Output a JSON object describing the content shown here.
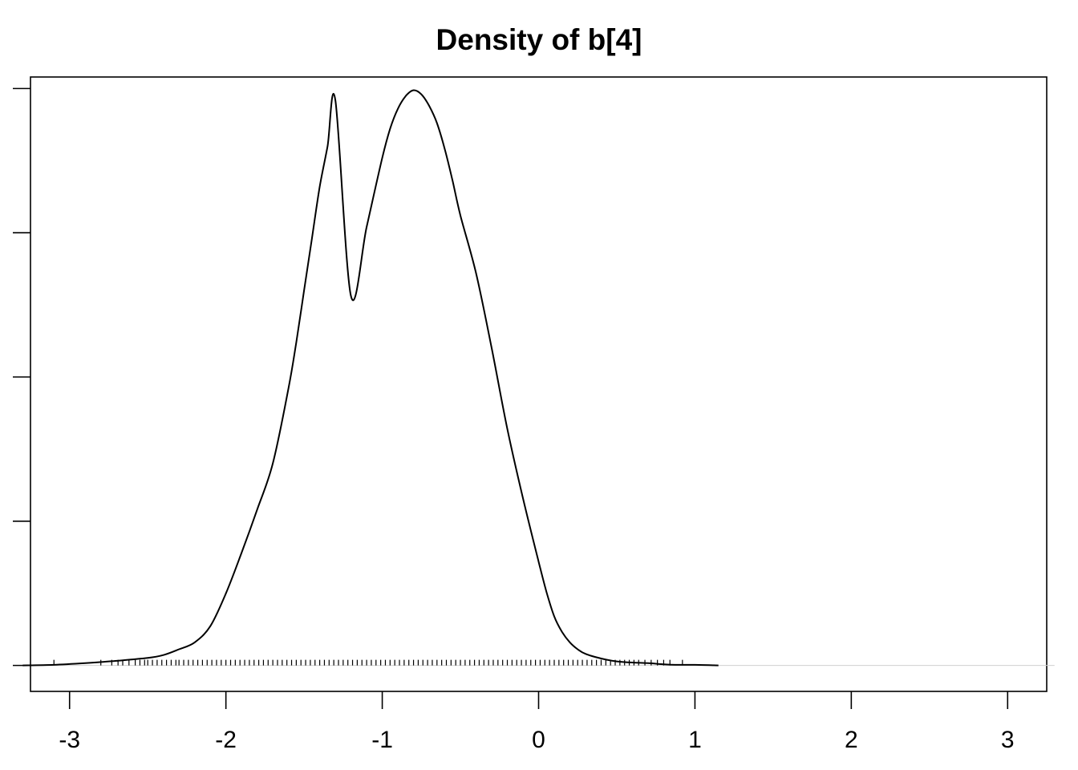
{
  "chart_data": {
    "type": "line",
    "title": "Density of b[4]",
    "xlabel": "",
    "ylabel": "",
    "xlim": [
      -3.25,
      3.25
    ],
    "ylim": [
      -0.045,
      1.02
    ],
    "x_ticks": [
      -3,
      -2,
      -1,
      0,
      1,
      2,
      3
    ],
    "x_tick_labels": [
      "-3",
      "-2",
      "-1",
      "0",
      "1",
      "2",
      "3"
    ],
    "y_ticks": [
      0,
      0.25,
      0.5,
      0.75,
      1.0
    ],
    "y_tick_labels_shown": false,
    "grid": false,
    "legend": "none",
    "series": [
      {
        "x": [
          -3.3,
          -3.1,
          -2.9,
          -2.7,
          -2.5,
          -2.4,
          -2.3,
          -2.2,
          -2.1,
          -2.0,
          -1.9,
          -1.8,
          -1.7,
          -1.6,
          -1.55,
          -1.5,
          -1.45,
          -1.4,
          -1.35,
          -1.3,
          -1.2,
          -1.1,
          -1.0,
          -0.95,
          -0.9,
          -0.85,
          -0.8,
          -0.75,
          -0.7,
          -0.65,
          -0.6,
          -0.55,
          -0.5,
          -0.4,
          -0.3,
          -0.2,
          -0.1,
          0.0,
          0.05,
          0.1,
          0.15,
          0.2,
          0.25,
          0.3,
          0.4,
          0.5,
          0.6,
          0.7,
          0.8,
          0.9,
          1.0,
          1.15
        ],
        "y": [
          0.0,
          0.001,
          0.004,
          0.008,
          0.013,
          0.018,
          0.028,
          0.04,
          0.068,
          0.125,
          0.195,
          0.27,
          0.35,
          0.48,
          0.56,
          0.65,
          0.74,
          0.83,
          0.9,
          0.98,
          0.64,
          0.76,
          0.88,
          0.93,
          0.965,
          0.987,
          0.997,
          0.99,
          0.97,
          0.94,
          0.895,
          0.84,
          0.78,
          0.68,
          0.55,
          0.41,
          0.29,
          0.18,
          0.128,
          0.085,
          0.058,
          0.04,
          0.028,
          0.02,
          0.012,
          0.007,
          0.005,
          0.004,
          0.002,
          0.001,
          0.001,
          0.0
        ]
      }
    ],
    "rug": {
      "x": [
        -3.1,
        -2.8,
        -2.73,
        -2.69,
        -2.66,
        -2.62,
        -2.58,
        -2.55,
        -2.52,
        -2.5,
        -2.47,
        -2.44,
        -2.41,
        -2.38,
        -2.35,
        -2.32,
        -2.3,
        -2.27,
        -2.24,
        -2.21,
        -2.18,
        -2.15,
        -2.12,
        -2.09,
        -2.06,
        -2.03,
        -2.0,
        -1.97,
        -1.94,
        -1.91,
        -1.88,
        -1.85,
        -1.82,
        -1.79,
        -1.76,
        -1.73,
        -1.7,
        -1.67,
        -1.64,
        -1.61,
        -1.58,
        -1.55,
        -1.52,
        -1.49,
        -1.46,
        -1.43,
        -1.4,
        -1.37,
        -1.34,
        -1.31,
        -1.28,
        -1.25,
        -1.22,
        -1.19,
        -1.16,
        -1.13,
        -1.1,
        -1.07,
        -1.04,
        -1.01,
        -0.98,
        -0.95,
        -0.92,
        -0.89,
        -0.86,
        -0.83,
        -0.8,
        -0.77,
        -0.74,
        -0.71,
        -0.68,
        -0.65,
        -0.62,
        -0.59,
        -0.56,
        -0.53,
        -0.5,
        -0.47,
        -0.44,
        -0.41,
        -0.38,
        -0.35,
        -0.32,
        -0.29,
        -0.26,
        -0.23,
        -0.2,
        -0.17,
        -0.14,
        -0.11,
        -0.08,
        -0.05,
        -0.02,
        0.01,
        0.04,
        0.07,
        0.1,
        0.13,
        0.16,
        0.19,
        0.22,
        0.25,
        0.28,
        0.31,
        0.34,
        0.37,
        0.4,
        0.43,
        0.46,
        0.49,
        0.52,
        0.55,
        0.58,
        0.61,
        0.64,
        0.68,
        0.72,
        0.76,
        0.8,
        0.84,
        0.92
      ]
    }
  }
}
